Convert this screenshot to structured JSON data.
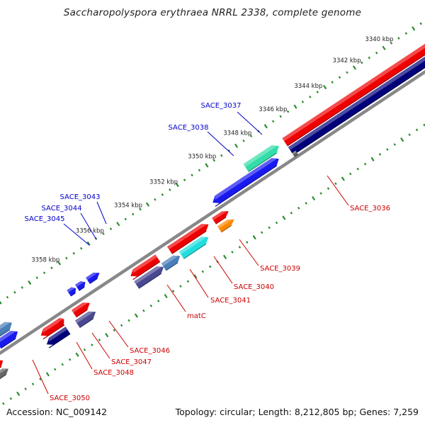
{
  "title": "Saccharopolyspora erythraea NRRL 2338, complete genome",
  "footer": {
    "accession": "Accession: NC_009142",
    "summary": "Topology: circular; Length: 8,212,805 bp; Genes: 7,259"
  },
  "ruler": {
    "ticks": [
      "3340 kbp",
      "3342 kbp",
      "3344 kbp",
      "3346 kbp",
      "3348 kbp",
      "3350 kbp",
      "3352 kbp",
      "3354 kbp",
      "3356 kbp",
      "3358 kbp"
    ]
  },
  "colors": {
    "red": "#ee0000",
    "navy": "#00007a",
    "blue": "#1a1aee",
    "steel": "#4a7fb8",
    "green": "#33ddaa",
    "cyan": "#22dddd",
    "orange": "#ff8800",
    "purple": "#4a4890",
    "gray": "#666666",
    "tick": "#2e8b2e",
    "label_red": "#cc0000",
    "label_blue": "#0000cc",
    "backbone": "#888888"
  },
  "genes": [
    {
      "name": "SACE_3036",
      "label_color": "label_red"
    },
    {
      "name": "SACE_3037",
      "label_color": "label_blue"
    },
    {
      "name": "SACE_3038",
      "label_color": "label_blue"
    },
    {
      "name": "SACE_3039",
      "label_color": "label_red"
    },
    {
      "name": "SACE_3040",
      "label_color": "label_red"
    },
    {
      "name": "SACE_3041",
      "label_color": "label_red"
    },
    {
      "name": "matC",
      "label_color": "label_red"
    },
    {
      "name": "SACE_3043",
      "label_color": "label_blue"
    },
    {
      "name": "SACE_3044",
      "label_color": "label_blue"
    },
    {
      "name": "SACE_3045",
      "label_color": "label_blue"
    },
    {
      "name": "SACE_3046",
      "label_color": "label_red"
    },
    {
      "name": "SACE_3047",
      "label_color": "label_red"
    },
    {
      "name": "SACE_3048",
      "label_color": "label_red"
    },
    {
      "name": "SACE_3050",
      "label_color": "label_red"
    }
  ]
}
